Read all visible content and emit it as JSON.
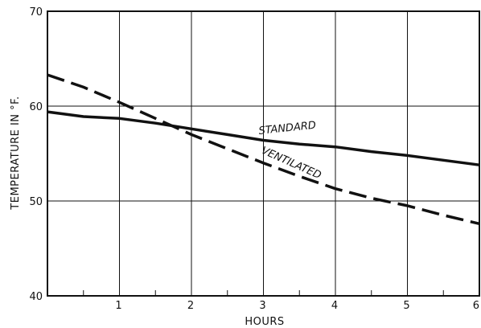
{
  "chart_data": {
    "type": "line",
    "xlabel": "HOURS",
    "ylabel": "TEMPERATURE IN °F.",
    "xlim": [
      0,
      6
    ],
    "ylim": [
      40,
      70
    ],
    "x_ticks": [
      "1",
      "2",
      "3",
      "4",
      "5",
      "6"
    ],
    "y_ticks": [
      "40",
      "50",
      "60",
      "70"
    ],
    "grid": true,
    "series": [
      {
        "name": "STANDARD",
        "style": "solid",
        "x": [
          0,
          0.5,
          1,
          1.5,
          2,
          2.5,
          3,
          3.5,
          4,
          4.5,
          5,
          5.5,
          6
        ],
        "y": [
          59.4,
          58.9,
          58.7,
          58.2,
          57.6,
          57.0,
          56.4,
          56.0,
          55.7,
          55.2,
          54.8,
          54.3,
          53.8
        ]
      },
      {
        "name": "VENTILATED",
        "style": "dashed",
        "x": [
          0,
          0.5,
          1,
          1.5,
          2,
          2.5,
          3,
          3.5,
          4,
          4.5,
          5,
          5.5,
          6
        ],
        "y": [
          63.3,
          62.0,
          60.4,
          58.7,
          57.0,
          55.5,
          54.0,
          52.6,
          51.3,
          50.3,
          49.5,
          48.5,
          47.6
        ]
      }
    ]
  }
}
